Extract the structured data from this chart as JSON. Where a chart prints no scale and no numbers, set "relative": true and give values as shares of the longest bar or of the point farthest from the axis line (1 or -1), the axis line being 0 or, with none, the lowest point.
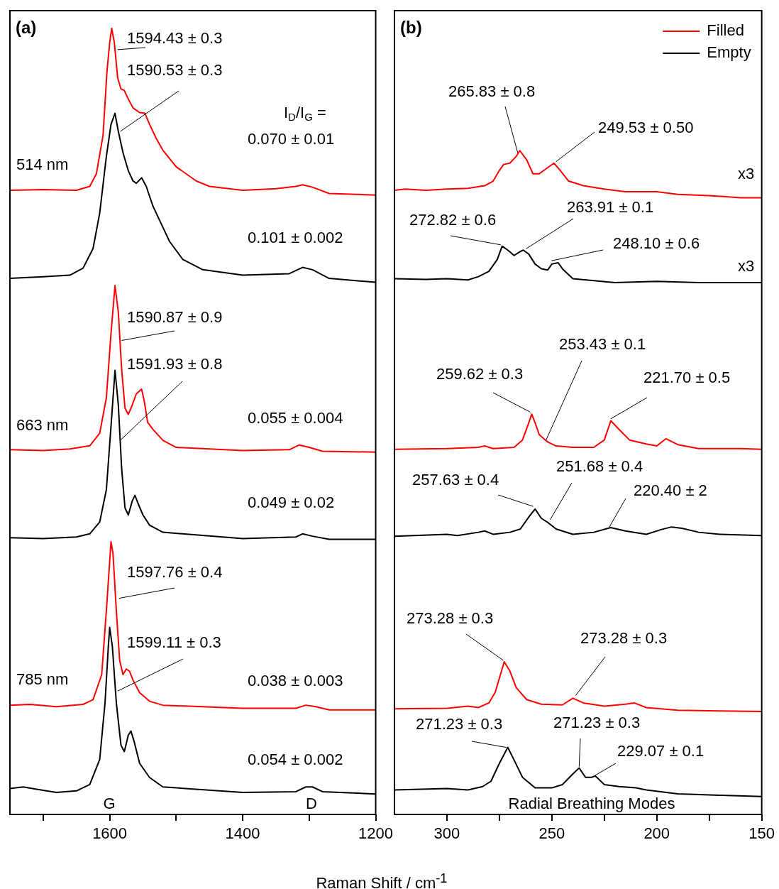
{
  "chart_data": [
    {
      "type": "line",
      "title": "(a)",
      "xlabel": "Raman Shift / cm$^{-1}$",
      "relative": true,
      "xlim": [
        1750,
        1200
      ],
      "xticks": [
        {
          "value": 1700,
          "label": null
        },
        1600,
        {
          "value": 1500,
          "label": null
        },
        1400,
        {
          "value": 1300,
          "label": null
        },
        1200
      ],
      "annotations": [
        {
          "text": "1594.43 ± 0.3",
          "x": 1588,
          "y": 0.973
        },
        {
          "text": "1590.53 ± 0.3",
          "x": 1584,
          "y": 0.869
        },
        {
          "text": "1590.87 ± 0.9",
          "x": 1582,
          "y": 0.603
        },
        {
          "text": "1591.93 ± 0.8",
          "x": 1584,
          "y": 0.476
        },
        {
          "text": "1597.76 ± 0.4",
          "x": 1586,
          "y": 0.275
        },
        {
          "text": "1599.11 ± 0.3",
          "x": 1588,
          "y": 0.157
        },
        "514 nm",
        "663 nm",
        "785 nm",
        "I$_{D}$/I$_{G}$ =",
        "0.070 ± 0.01",
        "0.101 ± 0.002",
        "0.055 ± 0.004",
        "0.049 ± 0.02",
        "0.038 ± 0.003",
        "0.054 ± 0.002",
        "G",
        "D"
      ],
      "series": [
        {
          "color": "#ff0000",
          "x": [
            1750,
            1700,
            1650,
            1630,
            1620,
            1610,
            1604,
            1600,
            1597,
            1593,
            1588,
            1583,
            1578,
            1572,
            1565,
            1555,
            1547,
            1540,
            1530,
            1520,
            1500,
            1470,
            1450,
            1400,
            1350,
            1320,
            1310,
            1295,
            1270,
            1200
          ],
          "values": [
            0.794,
            0.795,
            0.794,
            0.799,
            0.815,
            0.864,
            0.946,
            0.982,
            1.0,
            0.982,
            0.937,
            0.923,
            0.921,
            0.91,
            0.899,
            0.893,
            0.892,
            0.878,
            0.86,
            0.845,
            0.824,
            0.806,
            0.799,
            0.794,
            0.796,
            0.799,
            0.801,
            0.798,
            0.79,
            0.788
          ]
        },
        {
          "color": "#000000",
          "x": [
            1750,
            1700,
            1660,
            1640,
            1625,
            1615,
            1605,
            1598,
            1592,
            1587,
            1580,
            1572,
            1565,
            1560,
            1552,
            1545,
            1535,
            1525,
            1510,
            1490,
            1460,
            1400,
            1330,
            1310,
            1295,
            1270,
            1200
          ],
          "values": [
            0.682,
            0.684,
            0.686,
            0.695,
            0.72,
            0.765,
            0.837,
            0.878,
            0.892,
            0.869,
            0.842,
            0.819,
            0.806,
            0.803,
            0.81,
            0.799,
            0.774,
            0.756,
            0.729,
            0.706,
            0.693,
            0.686,
            0.688,
            0.696,
            0.693,
            0.682,
            0.677
          ]
        },
        {
          "color": "#ff0000",
          "x": [
            1750,
            1700,
            1660,
            1630,
            1615,
            1605,
            1598,
            1592,
            1587,
            1582,
            1577,
            1572,
            1566,
            1560,
            1552,
            1548,
            1543,
            1535,
            1520,
            1500,
            1400,
            1330,
            1315,
            1300,
            1280,
            1200
          ],
          "values": [
            0.464,
            0.463,
            0.465,
            0.469,
            0.485,
            0.53,
            0.612,
            0.673,
            0.639,
            0.566,
            0.517,
            0.509,
            0.521,
            0.535,
            0.541,
            0.526,
            0.499,
            0.49,
            0.476,
            0.467,
            0.463,
            0.464,
            0.47,
            0.467,
            0.462,
            0.461
          ]
        },
        {
          "color": "#000000",
          "x": [
            1750,
            1700,
            1650,
            1630,
            1615,
            1605,
            1598,
            1592,
            1587,
            1582,
            1577,
            1572,
            1566,
            1562,
            1557,
            1550,
            1540,
            1520,
            1400,
            1320,
            1310,
            1295,
            1270,
            1200
          ],
          "values": [
            0.352,
            0.351,
            0.353,
            0.357,
            0.372,
            0.413,
            0.494,
            0.565,
            0.521,
            0.44,
            0.39,
            0.381,
            0.399,
            0.406,
            0.395,
            0.381,
            0.368,
            0.359,
            0.351,
            0.353,
            0.357,
            0.354,
            0.35,
            0.35
          ]
        },
        {
          "color": "#ff0000",
          "x": [
            1750,
            1720,
            1680,
            1640,
            1625,
            1612,
            1605,
            1600,
            1598,
            1595,
            1590,
            1585,
            1580,
            1575,
            1570,
            1565,
            1555,
            1540,
            1520,
            1400,
            1320,
            1305,
            1290,
            1270,
            1200
          ],
          "values": [
            0.139,
            0.14,
            0.137,
            0.14,
            0.146,
            0.178,
            0.259,
            0.322,
            0.347,
            0.332,
            0.259,
            0.196,
            0.178,
            0.185,
            0.182,
            0.171,
            0.155,
            0.144,
            0.139,
            0.135,
            0.135,
            0.139,
            0.137,
            0.133,
            0.133
          ]
        },
        {
          "color": "#000000",
          "x": [
            1750,
            1730,
            1710,
            1680,
            1650,
            1630,
            1615,
            1607,
            1602,
            1600,
            1596,
            1590,
            1583,
            1578,
            1572,
            1568,
            1563,
            1555,
            1540,
            1520,
            1400,
            1320,
            1305,
            1295,
            1280,
            1200
          ],
          "values": [
            0.033,
            0.035,
            0.032,
            0.028,
            0.03,
            0.038,
            0.07,
            0.142,
            0.214,
            0.238,
            0.214,
            0.142,
            0.088,
            0.08,
            0.101,
            0.106,
            0.092,
            0.065,
            0.047,
            0.035,
            0.028,
            0.029,
            0.035,
            0.035,
            0.029,
            0.026
          ]
        }
      ]
    },
    {
      "type": "line",
      "title": "(b)",
      "relative": true,
      "legend": "top right",
      "xlim": [
        325,
        150
      ],
      "xticks": [
        300,
        {
          "value": 275,
          "label": null
        },
        250,
        {
          "value": 225,
          "label": null
        },
        200,
        {
          "value": 175,
          "label": null
        },
        150
      ],
      "annotations": [
        {
          "text": "265.83 ± 0.8",
          "x": 266.3,
          "y": 0.997
        },
        {
          "text": "249.53 ± 0.50",
          "x": 248.1,
          "y": 0.983
        },
        {
          "text": "272.82 ± 0.6",
          "x": 274.4,
          "y": 0.858
        },
        {
          "text": "263.91 ± 0.1",
          "x": 262.3,
          "y": 0.852
        },
        {
          "text": "248.10 ± 0.6",
          "x": 250.2,
          "y": 0.834
        },
        {
          "text": "259.62 ± 0.3",
          "x": 260.3,
          "y": 0.606
        },
        {
          "text": "253.43 ± 0.1",
          "x": 252.9,
          "y": 0.563
        },
        {
          "text": "221.70 ± 0.5",
          "x": 221.9,
          "y": 0.596
        },
        {
          "text": "257.63 ± 0.4",
          "x": 258.9,
          "y": 0.464
        },
        {
          "text": "251.68 ± 0.4",
          "x": 250.8,
          "y": 0.444
        },
        {
          "text": "220.40 ± 2",
          "x": 222.6,
          "y": 0.433
        },
        {
          "text": "273.28 ± 0.3",
          "x": 273.1,
          "y": 0.232
        },
        {
          "text": "273.28 ± 0.3",
          "x": 238.7,
          "y": 0.179
        },
        {
          "text": "271.23 ± 0.3",
          "x": 271.7,
          "y": 0.101
        },
        {
          "text": "271.23 ± 0.3",
          "x": 237.0,
          "y": 0.072
        },
        {
          "text": "229.07 ± 0.1",
          "x": 229.3,
          "y": 0.059
        },
        "x3",
        "x3",
        "Radial Breathing Modes"
      ],
      "series": [
        {
          "name": "Filled",
          "color": "#ff0000",
          "x": [
            325,
            320,
            310,
            300,
            290,
            282,
            278,
            275,
            273,
            270,
            267,
            265.3,
            262,
            259,
            256,
            253,
            249,
            246,
            242,
            235,
            225,
            215,
            200,
            190,
            175,
            160,
            150
          ],
          "values": [
            0.94,
            0.942,
            0.94,
            0.942,
            0.943,
            0.947,
            0.954,
            0.97,
            0.979,
            0.981,
            0.991,
            1.0,
            0.986,
            0.965,
            0.965,
            0.972,
            0.981,
            0.97,
            0.954,
            0.947,
            0.942,
            0.938,
            0.938,
            0.934,
            0.932,
            0.929,
            0.929
          ]
        },
        {
          "name": "Empty",
          "color": "#000000",
          "x": [
            325,
            310,
            300,
            290,
            285,
            280,
            276,
            273.7,
            271,
            268,
            265,
            263.6,
            261,
            258,
            255,
            252,
            250,
            247,
            245,
            240,
            230,
            220,
            200,
            180,
            150
          ],
          "values": [
            0.807,
            0.806,
            0.807,
            0.805,
            0.81,
            0.818,
            0.836,
            0.856,
            0.85,
            0.842,
            0.848,
            0.85,
            0.844,
            0.829,
            0.822,
            0.82,
            0.829,
            0.831,
            0.822,
            0.807,
            0.804,
            0.801,
            0.803,
            0.801,
            0.801
          ]
        },
        {
          "color": "#ff0000",
          "x": [
            325,
            300,
            285,
            282,
            278,
            268,
            264,
            261,
            259.6,
            258,
            256,
            252,
            248,
            240,
            230,
            225,
            221.9,
            218,
            213,
            205,
            200,
            195.6,
            190,
            180,
            160,
            150
          ],
          "values": [
            0.55,
            0.551,
            0.553,
            0.555,
            0.551,
            0.553,
            0.564,
            0.59,
            0.603,
            0.59,
            0.572,
            0.561,
            0.555,
            0.553,
            0.553,
            0.564,
            0.593,
            0.58,
            0.564,
            0.558,
            0.555,
            0.566,
            0.557,
            0.551,
            0.551,
            0.55
          ]
        },
        {
          "color": "#000000",
          "x": [
            325,
            300,
            295,
            285,
            282,
            278,
            270,
            265,
            261,
            258,
            255,
            252,
            248,
            240,
            230,
            222,
            215,
            205,
            198,
            193,
            188,
            180,
            170,
            150
          ],
          "values": [
            0.419,
            0.422,
            0.42,
            0.425,
            0.427,
            0.422,
            0.425,
            0.43,
            0.448,
            0.46,
            0.446,
            0.44,
            0.43,
            0.422,
            0.425,
            0.432,
            0.427,
            0.422,
            0.429,
            0.433,
            0.431,
            0.425,
            0.422,
            0.42
          ]
        },
        {
          "color": "#ff0000",
          "x": [
            325,
            300,
            290,
            285,
            280,
            277,
            274,
            272.7,
            270,
            267,
            262,
            255,
            245,
            240,
            235,
            225,
            215,
            210.8,
            205,
            190,
            170,
            150
          ],
          "values": [
            0.159,
            0.16,
            0.163,
            0.161,
            0.168,
            0.184,
            0.216,
            0.23,
            0.216,
            0.191,
            0.173,
            0.166,
            0.165,
            0.175,
            0.168,
            0.163,
            0.166,
            0.168,
            0.161,
            0.157,
            0.156,
            0.155
          ]
        },
        {
          "color": "#000000",
          "x": [
            325,
            300,
            290,
            283,
            279,
            275,
            271,
            268,
            264,
            258,
            250,
            245,
            240,
            237,
            234,
            231,
            229.3,
            225,
            218,
            210,
            205,
            190,
            170,
            150
          ],
          "values": [
            0.037,
            0.039,
            0.037,
            0.042,
            0.05,
            0.077,
            0.101,
            0.082,
            0.056,
            0.04,
            0.04,
            0.045,
            0.061,
            0.07,
            0.056,
            0.056,
            0.058,
            0.045,
            0.042,
            0.04,
            0.037,
            0.031,
            0.029,
            0.027
          ]
        }
      ]
    }
  ]
}
